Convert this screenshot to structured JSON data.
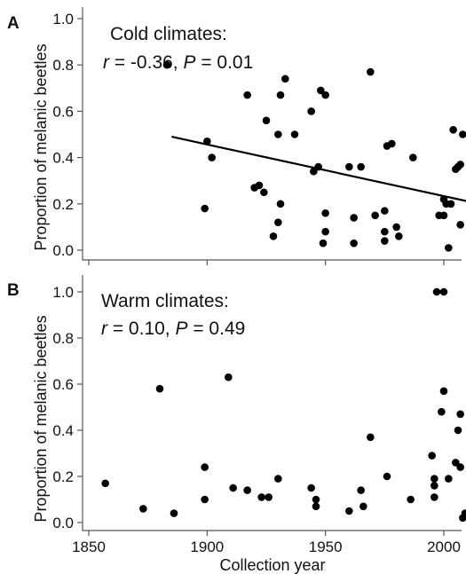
{
  "chart_data": [
    {
      "type": "scatter",
      "panel_label": "A",
      "annotation_title": "Cold climates:",
      "stat_r_label": "r",
      "stat_r_value": " = -0.36, ",
      "stat_p_label": "P",
      "stat_p_value": " = 0.01",
      "ylabel": "Proportion of melanic beetles",
      "xlabel": "",
      "xlim": [
        1850,
        2020
      ],
      "ylim": [
        0.0,
        1.05
      ],
      "xticks": [
        1850,
        1900,
        1950,
        2000
      ],
      "yticks": [
        "0.0",
        "0.2",
        "0.4",
        "0.6",
        "0.8",
        "1.0"
      ],
      "show_x_tick_labels": false,
      "trendline": {
        "x": [
          1885,
          2015
        ],
        "y": [
          0.49,
          0.2
        ]
      },
      "points": [
        {
          "x": 1883,
          "y": 0.8
        },
        {
          "x": 1899,
          "y": 0.18
        },
        {
          "x": 1900,
          "y": 0.47
        },
        {
          "x": 1902,
          "y": 0.4
        },
        {
          "x": 1917,
          "y": 0.67
        },
        {
          "x": 1920,
          "y": 0.27
        },
        {
          "x": 1922,
          "y": 0.28
        },
        {
          "x": 1924,
          "y": 0.25
        },
        {
          "x": 1925,
          "y": 0.56
        },
        {
          "x": 1928,
          "y": 0.06
        },
        {
          "x": 1930,
          "y": 0.12
        },
        {
          "x": 1930,
          "y": 0.5
        },
        {
          "x": 1931,
          "y": 0.67
        },
        {
          "x": 1931,
          "y": 0.2
        },
        {
          "x": 1933,
          "y": 0.74
        },
        {
          "x": 1937,
          "y": 0.5
        },
        {
          "x": 1944,
          "y": 0.6
        },
        {
          "x": 1945,
          "y": 0.34
        },
        {
          "x": 1947,
          "y": 0.36
        },
        {
          "x": 1948,
          "y": 0.69
        },
        {
          "x": 1949,
          "y": 0.03
        },
        {
          "x": 1950,
          "y": 0.67
        },
        {
          "x": 1950,
          "y": 0.16
        },
        {
          "x": 1950,
          "y": 0.08
        },
        {
          "x": 1960,
          "y": 0.36
        },
        {
          "x": 1962,
          "y": 0.14
        },
        {
          "x": 1962,
          "y": 0.03
        },
        {
          "x": 1965,
          "y": 0.36
        },
        {
          "x": 1969,
          "y": 0.77
        },
        {
          "x": 1971,
          "y": 0.15
        },
        {
          "x": 1975,
          "y": 0.17
        },
        {
          "x": 1975,
          "y": 0.08
        },
        {
          "x": 1975,
          "y": 0.04
        },
        {
          "x": 1976,
          "y": 0.45
        },
        {
          "x": 1978,
          "y": 0.46
        },
        {
          "x": 1980,
          "y": 0.1
        },
        {
          "x": 1981,
          "y": 0.06
        },
        {
          "x": 1987,
          "y": 0.4
        },
        {
          "x": 1998,
          "y": 0.15
        },
        {
          "x": 2000,
          "y": 0.15
        },
        {
          "x": 2000,
          "y": 0.22
        },
        {
          "x": 2001,
          "y": 0.2
        },
        {
          "x": 2002,
          "y": 0.01
        },
        {
          "x": 2003,
          "y": 0.2
        },
        {
          "x": 2004,
          "y": 0.52
        },
        {
          "x": 2005,
          "y": 0.35
        },
        {
          "x": 2006,
          "y": 0.36
        },
        {
          "x": 2007,
          "y": 0.37
        },
        {
          "x": 2007,
          "y": 0.11
        },
        {
          "x": 2008,
          "y": 0.5
        },
        {
          "x": 2015,
          "y": 0.14
        },
        {
          "x": 2015,
          "y": 0.16
        },
        {
          "x": 2015,
          "y": 0.18
        }
      ]
    },
    {
      "type": "scatter",
      "panel_label": "B",
      "annotation_title": "Warm climates:",
      "stat_r_label": "r",
      "stat_r_value": " = 0.10, ",
      "stat_p_label": "P",
      "stat_p_value": " = 0.49",
      "ylabel": "Proportion of melanic beetles",
      "xlabel": "Collection year",
      "xlim": [
        1850,
        2020
      ],
      "ylim": [
        0.0,
        1.05
      ],
      "xticks": [
        1850,
        1900,
        1950,
        2000
      ],
      "yticks": [
        "0.0",
        "0.2",
        "0.4",
        "0.6",
        "0.8",
        "1.0"
      ],
      "show_x_tick_labels": true,
      "points": [
        {
          "x": 1857,
          "y": 0.17
        },
        {
          "x": 1873,
          "y": 0.06
        },
        {
          "x": 1880,
          "y": 0.58
        },
        {
          "x": 1886,
          "y": 0.04
        },
        {
          "x": 1899,
          "y": 0.24
        },
        {
          "x": 1899,
          "y": 0.1
        },
        {
          "x": 1909,
          "y": 0.63
        },
        {
          "x": 1911,
          "y": 0.15
        },
        {
          "x": 1917,
          "y": 0.14
        },
        {
          "x": 1923,
          "y": 0.11
        },
        {
          "x": 1926,
          "y": 0.11
        },
        {
          "x": 1930,
          "y": 0.19
        },
        {
          "x": 1944,
          "y": 0.15
        },
        {
          "x": 1946,
          "y": 0.1
        },
        {
          "x": 1946,
          "y": 0.07
        },
        {
          "x": 1960,
          "y": 0.05
        },
        {
          "x": 1965,
          "y": 0.14
        },
        {
          "x": 1966,
          "y": 0.07
        },
        {
          "x": 1969,
          "y": 0.37
        },
        {
          "x": 1976,
          "y": 0.2
        },
        {
          "x": 1986,
          "y": 0.1
        },
        {
          "x": 1995,
          "y": 0.29
        },
        {
          "x": 1996,
          "y": 0.19
        },
        {
          "x": 1996,
          "y": 0.16
        },
        {
          "x": 1996,
          "y": 0.11
        },
        {
          "x": 1997,
          "y": 1.0
        },
        {
          "x": 1999,
          "y": 0.48
        },
        {
          "x": 2000,
          "y": 1.0
        },
        {
          "x": 2000,
          "y": 0.57
        },
        {
          "x": 2002,
          "y": 0.19
        },
        {
          "x": 2005,
          "y": 0.26
        },
        {
          "x": 2006,
          "y": 0.4
        },
        {
          "x": 2007,
          "y": 0.47
        },
        {
          "x": 2007,
          "y": 0.24
        },
        {
          "x": 2008,
          "y": 0.02
        },
        {
          "x": 2009,
          "y": 0.04
        },
        {
          "x": 2011,
          "y": 0.25
        },
        {
          "x": 2013,
          "y": 0.19
        },
        {
          "x": 2015,
          "y": 0.22
        },
        {
          "x": 2015,
          "y": 0.17
        },
        {
          "x": 2015,
          "y": 0.13
        },
        {
          "x": 2015,
          "y": 0.03
        },
        {
          "x": 2018,
          "y": 0.12
        }
      ]
    }
  ]
}
